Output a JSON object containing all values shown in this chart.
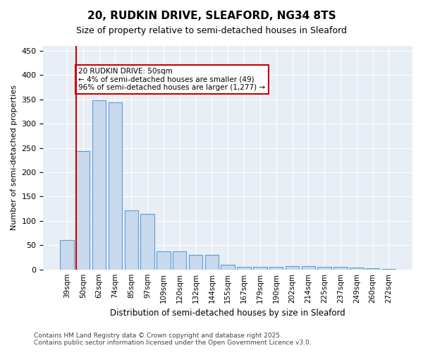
{
  "title1": "20, RUDKIN DRIVE, SLEAFORD, NG34 8TS",
  "title2": "Size of property relative to semi-detached houses in Sleaford",
  "xlabel": "Distribution of semi-detached houses by size in Sleaford",
  "ylabel": "Number of semi-detached properties",
  "categories": [
    "39sqm",
    "50sqm",
    "62sqm",
    "74sqm",
    "85sqm",
    "97sqm",
    "109sqm",
    "120sqm",
    "132sqm",
    "144sqm",
    "155sqm",
    "167sqm",
    "179sqm",
    "190sqm",
    "202sqm",
    "214sqm",
    "225sqm",
    "237sqm",
    "249sqm",
    "260sqm",
    "272sqm"
  ],
  "values": [
    60,
    244,
    348,
    344,
    122,
    114,
    38,
    38,
    30,
    30,
    9,
    6,
    5,
    5,
    7,
    7,
    6,
    5,
    4,
    2,
    1
  ],
  "bar_color": "#c9d9ed",
  "bar_edge_color": "#5b9bd5",
  "highlight_index": 1,
  "highlight_line_color": "#cc0000",
  "annotation_text": "20 RUDKIN DRIVE: 50sqm\n← 4% of semi-detached houses are smaller (49)\n96% of semi-detached houses are larger (1,277) →",
  "annotation_box_color": "#ffffff",
  "annotation_box_edge": "#cc0000",
  "footer1": "Contains HM Land Registry data © Crown copyright and database right 2025.",
  "footer2": "Contains public sector information licensed under the Open Government Licence v3.0.",
  "ylim": [
    0,
    460
  ],
  "background_color": "#e8eef5"
}
